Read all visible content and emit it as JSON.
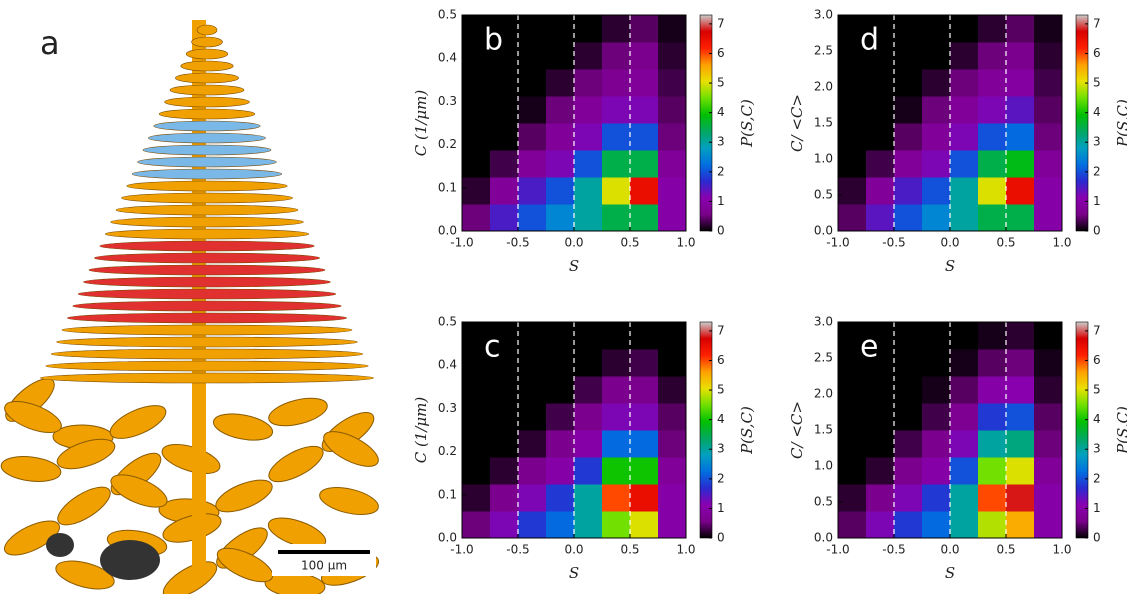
{
  "panel_a": {
    "label": "a",
    "scale_bar": "100 μm"
  },
  "colormap": [
    "#000000",
    "#7a008a",
    "#8a00b0",
    "#2a2ad0",
    "#0070e0",
    "#00a0c0",
    "#00a860",
    "#00c000",
    "#70e000",
    "#e8e000",
    "#ffa000",
    "#ff2000",
    "#d80000",
    "#cccccc"
  ],
  "chart_data": [
    {
      "type": "heatmap",
      "panel_label": "b",
      "xlabel": "S",
      "ylabel": "C (1/μm)",
      "colorbar_label": "P(S,C)",
      "xlim": [
        -1,
        1
      ],
      "xticks": [
        {
          "value": -1,
          "label": "-1.0"
        },
        -0.5,
        {
          "value": 0,
          "label": "0.0"
        },
        0.5,
        {
          "value": 1,
          "label": "1.0"
        }
      ],
      "ylim": [
        0,
        0.5
      ],
      "yticks": [
        {
          "value": 0,
          "label": "0.0"
        },
        0.1,
        0.2,
        0.3,
        0.4,
        0.5
      ],
      "zlim": [
        0,
        7.3
      ],
      "zticks": [
        0,
        1,
        2,
        3,
        4,
        5,
        6,
        7
      ],
      "vlines": [
        -0.5,
        0,
        0.5
      ],
      "xbins": [
        -1,
        -0.75,
        -0.5,
        -0.25,
        0,
        0.25,
        0.5,
        0.75,
        1
      ],
      "ybins": [
        0,
        0.0625,
        0.125,
        0.1875,
        0.25,
        0.3125,
        0.375,
        0.4375,
        0.5
      ],
      "z": [
        [
          0.5,
          1.5,
          2,
          2.5,
          3,
          3.5,
          3.5,
          1
        ],
        [
          0.2,
          0.8,
          1.5,
          2,
          3,
          5,
          6.5,
          1
        ],
        [
          0,
          0.3,
          0.8,
          1.2,
          2,
          3.5,
          3.5,
          0.8
        ],
        [
          0,
          0,
          0.4,
          0.8,
          1.2,
          2,
          2,
          0.5
        ],
        [
          0,
          0,
          0.1,
          0.5,
          0.8,
          1.2,
          1.2,
          0.4
        ],
        [
          0,
          0,
          0,
          0.2,
          0.5,
          0.7,
          0.8,
          0.3
        ],
        [
          0,
          0,
          0,
          0,
          0.2,
          0.5,
          0.6,
          0.2
        ],
        [
          0,
          0,
          0,
          0,
          0,
          0.2,
          0.4,
          0.1
        ]
      ]
    },
    {
      "type": "heatmap",
      "panel_label": "c",
      "xlabel": "S",
      "ylabel": "C (1/μm)",
      "colorbar_label": "P(S,C)",
      "xlim": [
        -1,
        1
      ],
      "xticks": [
        {
          "value": -1,
          "label": "-1.0"
        },
        -0.5,
        {
          "value": 0,
          "label": "0.0"
        },
        0.5,
        {
          "value": 1,
          "label": "1.0"
        }
      ],
      "ylim": [
        0,
        0.5
      ],
      "yticks": [
        {
          "value": 0,
          "label": "0.0"
        },
        0.1,
        0.2,
        0.3,
        0.4,
        0.5
      ],
      "zlim": [
        0,
        7.3
      ],
      "zticks": [
        0,
        1,
        2,
        3,
        4,
        5,
        6,
        7
      ],
      "vlines": [
        -0.5,
        0,
        0.5
      ],
      "xbins": [
        -1,
        -0.75,
        -0.5,
        -0.25,
        0,
        0.25,
        0.5,
        0.75,
        1
      ],
      "ybins": [
        0,
        0.0625,
        0.125,
        0.1875,
        0.25,
        0.3125,
        0.375,
        0.4375,
        0.5
      ],
      "z": [
        [
          0.5,
          1.2,
          1.8,
          2.2,
          3,
          4.5,
          5,
          1
        ],
        [
          0.2,
          0.6,
          1.2,
          1.8,
          3,
          6,
          6.5,
          1
        ],
        [
          0,
          0.2,
          0.6,
          1,
          1.8,
          4,
          4,
          0.8
        ],
        [
          0,
          0,
          0.2,
          0.6,
          1,
          2.2,
          2.2,
          0.5
        ],
        [
          0,
          0,
          0,
          0.3,
          0.6,
          1.2,
          1.2,
          0.4
        ],
        [
          0,
          0,
          0,
          0,
          0.3,
          0.6,
          0.6,
          0.2
        ],
        [
          0,
          0,
          0,
          0,
          0,
          0.2,
          0.3,
          0
        ],
        [
          0,
          0,
          0,
          0,
          0,
          0,
          0,
          0
        ]
      ]
    },
    {
      "type": "heatmap",
      "panel_label": "d",
      "xlabel": "S",
      "ylabel": "C/ <C>",
      "colorbar_label": "P(S,C)",
      "xlim": [
        -1,
        1
      ],
      "xticks": [
        {
          "value": -1,
          "label": "-1.0"
        },
        -0.5,
        {
          "value": 0,
          "label": "0.0"
        },
        0.5,
        {
          "value": 1,
          "label": "1.0"
        }
      ],
      "ylim": [
        0,
        3
      ],
      "yticks": [
        {
          "value": 0,
          "label": "0.0"
        },
        0.5,
        {
          "value": 1,
          "label": "1.0"
        },
        1.5,
        {
          "value": 2,
          "label": "2.0"
        },
        2.5,
        {
          "value": 3,
          "label": "3.0"
        }
      ],
      "zlim": [
        0,
        7.3
      ],
      "zticks": [
        0,
        1,
        2,
        3,
        4,
        5,
        6,
        7
      ],
      "vlines": [
        -0.5,
        0,
        0.5
      ],
      "xbins": [
        -1,
        -0.75,
        -0.5,
        -0.25,
        0,
        0.25,
        0.5,
        0.75,
        1
      ],
      "ybins": [
        0,
        0.375,
        0.75,
        1.125,
        1.5,
        1.875,
        2.25,
        2.625,
        3
      ],
      "z": [
        [
          0.4,
          1.4,
          2,
          2.5,
          3,
          3.5,
          3.5,
          1
        ],
        [
          0.2,
          0.8,
          1.5,
          2,
          3,
          5,
          6.5,
          1
        ],
        [
          0,
          0.3,
          0.8,
          1.2,
          2,
          3.5,
          3.8,
          0.8
        ],
        [
          0,
          0,
          0.4,
          0.8,
          1.2,
          2,
          2.2,
          0.5
        ],
        [
          0,
          0,
          0.1,
          0.5,
          0.8,
          1.2,
          1.4,
          0.4
        ],
        [
          0,
          0,
          0,
          0.2,
          0.5,
          0.8,
          0.9,
          0.3
        ],
        [
          0,
          0,
          0,
          0,
          0.2,
          0.5,
          0.6,
          0.2
        ],
        [
          0,
          0,
          0,
          0,
          0,
          0.2,
          0.4,
          0.1
        ]
      ]
    },
    {
      "type": "heatmap",
      "panel_label": "e",
      "xlabel": "S",
      "ylabel": "C/ <C>",
      "colorbar_label": "P(S,C)",
      "xlim": [
        -1,
        1
      ],
      "xticks": [
        {
          "value": -1,
          "label": "-1.0"
        },
        -0.5,
        {
          "value": 0,
          "label": "0.0"
        },
        0.5,
        {
          "value": 1,
          "label": "1.0"
        }
      ],
      "ylim": [
        0,
        3
      ],
      "yticks": [
        {
          "value": 0,
          "label": "0.0"
        },
        0.5,
        {
          "value": 1,
          "label": "1.0"
        },
        1.5,
        {
          "value": 2,
          "label": "2.0"
        },
        2.5,
        {
          "value": 3,
          "label": "3.0"
        }
      ],
      "zlim": [
        0,
        7.3
      ],
      "zticks": [
        0,
        1,
        2,
        3,
        4,
        5,
        6,
        7
      ],
      "vlines": [
        -0.5,
        0,
        0.5
      ],
      "xbins": [
        -1,
        -0.75,
        -0.5,
        -0.25,
        0,
        0.25,
        0.5,
        0.75,
        1
      ],
      "ybins": [
        0,
        0.375,
        0.75,
        1.125,
        1.5,
        1.875,
        2.25,
        2.625,
        3
      ],
      "z": [
        [
          0.4,
          1.2,
          1.8,
          2.2,
          3,
          4.8,
          5.5,
          1
        ],
        [
          0.2,
          0.6,
          1.2,
          1.8,
          3,
          6,
          6.8,
          1
        ],
        [
          0,
          0.2,
          0.6,
          1,
          2,
          4.5,
          5,
          0.8
        ],
        [
          0,
          0,
          0.3,
          0.6,
          1.2,
          3,
          3.2,
          0.5
        ],
        [
          0,
          0,
          0,
          0.3,
          0.7,
          1.8,
          2,
          0.4
        ],
        [
          0,
          0,
          0,
          0.1,
          0.4,
          1,
          1.1,
          0.2
        ],
        [
          0,
          0,
          0,
          0,
          0.1,
          0.4,
          0.5,
          0.1
        ],
        [
          0,
          0,
          0,
          0,
          0,
          0.1,
          0.2,
          0
        ]
      ]
    }
  ]
}
